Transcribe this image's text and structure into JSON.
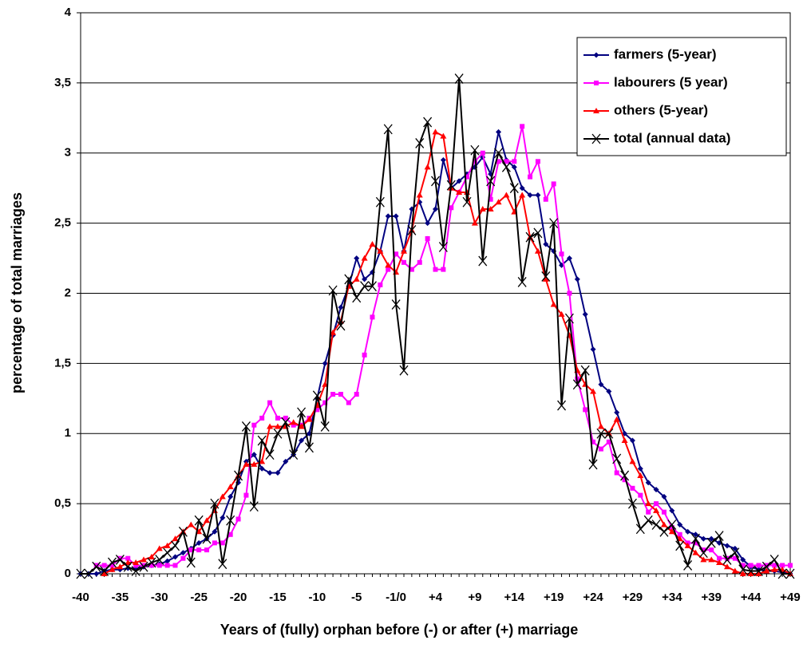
{
  "chart_data": {
    "type": "line",
    "x_label": "Years of (fully) orphan before (-) or after (+) marriage",
    "y_label": "percentage of total marriages",
    "categories": [
      "-40",
      null,
      null,
      null,
      null,
      "-35",
      null,
      null,
      null,
      null,
      "-30",
      null,
      null,
      null,
      null,
      "-25",
      null,
      null,
      null,
      null,
      "-20",
      null,
      null,
      null,
      null,
      "-15",
      null,
      null,
      null,
      null,
      "-10",
      null,
      null,
      null,
      null,
      "-5",
      null,
      null,
      null,
      null,
      "-1/0",
      null,
      null,
      null,
      null,
      "+4",
      null,
      null,
      null,
      null,
      "+9",
      null,
      null,
      null,
      null,
      "+14",
      null,
      null,
      null,
      null,
      "+19",
      null,
      null,
      null,
      null,
      "+24",
      null,
      null,
      null,
      null,
      "+29",
      null,
      null,
      null,
      null,
      "+34",
      null,
      null,
      null,
      null,
      "+39",
      null,
      null,
      null,
      null,
      "+44",
      null,
      null,
      null,
      null,
      "+49"
    ],
    "ylim": [
      0,
      4
    ],
    "yticks": [
      0,
      {
        "value": 0.5,
        "label": "0,5"
      },
      1,
      {
        "value": 1.5,
        "label": "1,5"
      },
      2,
      {
        "value": 2.5,
        "label": "2,5"
      },
      3,
      {
        "value": 3.5,
        "label": "3,5"
      },
      4
    ],
    "grid": true,
    "legend_position": "upper right",
    "series": [
      {
        "name": "farmers (5-year)",
        "color": "#000080",
        "marker": "diamond",
        "values": [
          0,
          0,
          0,
          0.02,
          0.03,
          0.03,
          0.04,
          0.04,
          0.05,
          0.06,
          0.07,
          0.09,
          0.12,
          0.15,
          0.18,
          0.22,
          0.25,
          0.3,
          0.4,
          0.55,
          0.65,
          0.8,
          0.85,
          0.75,
          0.72,
          0.72,
          0.8,
          0.85,
          0.95,
          1.0,
          1.25,
          1.5,
          1.7,
          1.9,
          2.05,
          2.25,
          2.1,
          2.15,
          2.3,
          2.55,
          2.55,
          2.3,
          2.6,
          2.65,
          2.5,
          2.6,
          2.95,
          2.75,
          2.8,
          2.85,
          2.9,
          2.97,
          2.85,
          3.15,
          2.95,
          2.9,
          2.75,
          2.7,
          2.7,
          2.35,
          2.3,
          2.2,
          2.25,
          2.1,
          1.85,
          1.6,
          1.35,
          1.3,
          1.15,
          1.0,
          0.95,
          0.75,
          0.65,
          0.6,
          0.55,
          0.45,
          0.35,
          0.3,
          0.28,
          0.25,
          0.25,
          0.22,
          0.2,
          0.18,
          0.1,
          0.05,
          0.03,
          0.02,
          0.02,
          0.01,
          0
        ]
      },
      {
        "name": "labourers (5 year)",
        "color": "#ff00ff",
        "marker": "square",
        "values": [
          null,
          null,
          0.06,
          0.06,
          0.06,
          0.11,
          0.11,
          0.06,
          0.06,
          0.06,
          0.06,
          0.06,
          0.06,
          0.11,
          0.17,
          0.17,
          0.17,
          0.22,
          0.22,
          0.28,
          0.39,
          0.56,
          1.06,
          1.11,
          1.22,
          1.11,
          1.11,
          1.06,
          1.06,
          1.11,
          1.17,
          1.22,
          1.28,
          1.28,
          1.22,
          1.28,
          1.56,
          1.83,
          2.06,
          2.17,
          2.28,
          2.22,
          2.17,
          2.22,
          2.39,
          2.17,
          2.17,
          2.61,
          2.72,
          2.83,
          2.94,
          3.0,
          2.67,
          2.94,
          2.94,
          2.94,
          3.19,
          2.83,
          2.94,
          2.67,
          2.78,
          2.28,
          2.0,
          1.39,
          1.17,
          0.94,
          0.89,
          0.94,
          0.72,
          0.67,
          0.61,
          0.56,
          0.44,
          0.5,
          0.44,
          0.33,
          0.28,
          0.22,
          0.22,
          0.17,
          0.17,
          0.11,
          0.11,
          0.11,
          0.06,
          0.06,
          0.06,
          0.06,
          0.06,
          0.06,
          0.06
        ]
      },
      {
        "name": "others (5-year)",
        "color": "#ff0000",
        "marker": "triangle",
        "values": [
          null,
          null,
          null,
          0,
          0.03,
          0.05,
          0.08,
          0.08,
          0.1,
          0.12,
          0.18,
          0.2,
          0.25,
          0.3,
          0.35,
          0.3,
          0.38,
          0.45,
          0.55,
          0.62,
          0.7,
          0.78,
          0.78,
          0.8,
          1.05,
          1.05,
          1.05,
          1.08,
          1.05,
          1.1,
          1.2,
          1.35,
          1.72,
          1.8,
          2.05,
          2.1,
          2.25,
          2.35,
          2.3,
          2.2,
          2.15,
          2.3,
          2.45,
          2.7,
          2.9,
          3.15,
          3.12,
          2.75,
          2.72,
          2.72,
          2.5,
          2.6,
          2.6,
          2.65,
          2.7,
          2.58,
          2.7,
          2.4,
          2.3,
          2.1,
          1.92,
          1.85,
          1.7,
          1.45,
          1.35,
          1.3,
          1.05,
          1.0,
          1.1,
          0.95,
          0.8,
          0.7,
          0.5,
          0.45,
          0.35,
          0.3,
          0.25,
          0.2,
          0.15,
          0.1,
          0.1,
          0.08,
          0.05,
          0.02,
          0,
          0,
          0,
          0.02,
          0.03,
          0.03,
          0
        ]
      },
      {
        "name": "total (annual data)",
        "color": "#000000",
        "marker": "x",
        "values": [
          0,
          0,
          0.05,
          0.02,
          0.08,
          0.1,
          0.05,
          0.02,
          0.05,
          0.08,
          0.1,
          0.15,
          0.2,
          0.3,
          0.08,
          0.38,
          0.25,
          0.5,
          0.07,
          0.38,
          0.7,
          1.05,
          0.48,
          0.95,
          0.85,
          1.0,
          1.08,
          0.85,
          1.15,
          0.9,
          1.27,
          1.05,
          2.02,
          1.77,
          2.1,
          1.97,
          2.05,
          2.05,
          2.65,
          3.17,
          1.92,
          1.45,
          2.45,
          3.07,
          3.22,
          2.8,
          2.33,
          2.77,
          3.53,
          2.65,
          3.02,
          2.23,
          2.8,
          3.0,
          2.9,
          2.75,
          2.08,
          2.4,
          2.43,
          2.12,
          2.5,
          1.2,
          1.82,
          1.35,
          1.45,
          0.78,
          1.0,
          1.0,
          0.82,
          0.7,
          0.5,
          0.32,
          0.38,
          0.35,
          0.3,
          0.35,
          0.2,
          0.06,
          0.25,
          0.15,
          0.22,
          0.27,
          0.1,
          0.15,
          0.03,
          0.02,
          0.02,
          0.05,
          0.1,
          0,
          0
        ]
      }
    ]
  }
}
